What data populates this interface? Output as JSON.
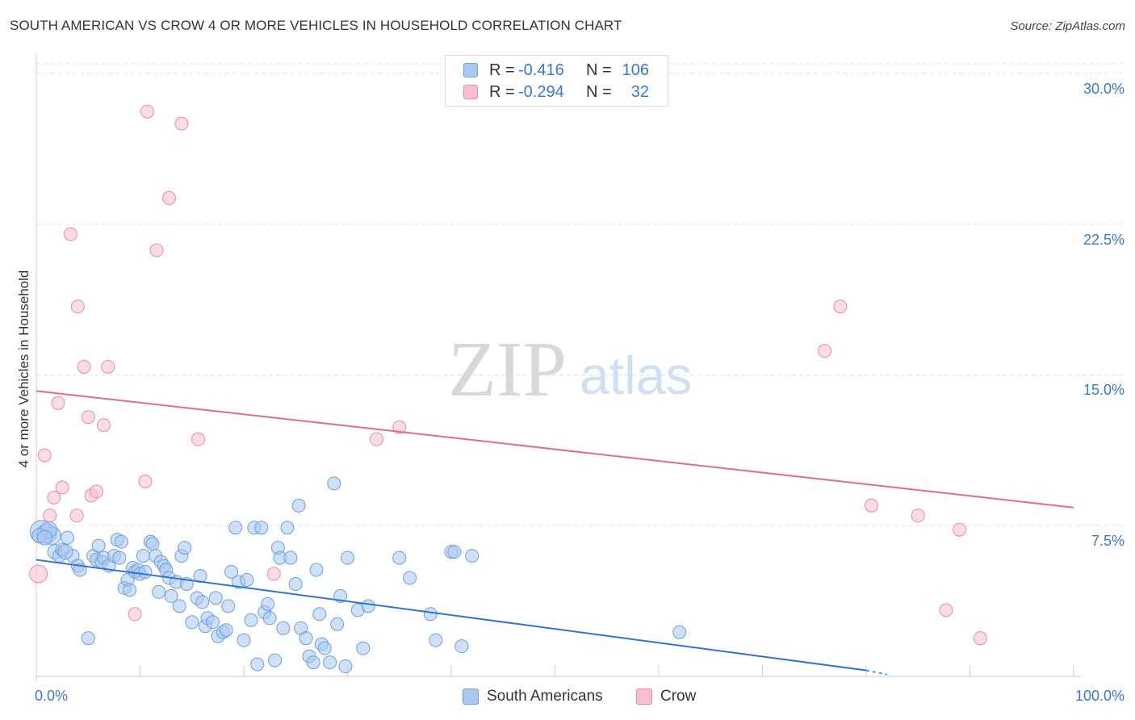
{
  "title": "SOUTH AMERICAN VS CROW 4 OR MORE VEHICLES IN HOUSEHOLD CORRELATION CHART",
  "source": "Source: ZipAtlas.com",
  "watermark": {
    "zip": "ZIP",
    "atlas": "atlas"
  },
  "legend": {
    "rows": [
      {
        "r_label": "R =",
        "r_value": "-0.416",
        "n_label": "N =",
        "n_value": "106",
        "color": "#a9c8f0",
        "border": "#6a9fe0"
      },
      {
        "r_label": "R =",
        "r_value": "-0.294",
        "n_label": "N =",
        "n_value": "32",
        "color": "#f7bfd0",
        "border": "#e88aa8"
      }
    ]
  },
  "chart_data": {
    "type": "scatter",
    "title": "SOUTH AMERICAN VS CROW 4 OR MORE VEHICLES IN HOUSEHOLD CORRELATION CHART",
    "xlabel": "",
    "ylabel": "4 or more Vehicles in Household",
    "xlim": [
      0,
      100
    ],
    "ylim": [
      0,
      31
    ],
    "x_tick_labels": [
      "0.0%",
      "100.0%"
    ],
    "y_ticks": [
      7.5,
      15.0,
      22.5,
      30.0
    ],
    "y_tick_labels": [
      "7.5%",
      "15.0%",
      "22.5%",
      "30.0%"
    ],
    "grid": true,
    "series": [
      {
        "name": "South Americans",
        "color": "#a9c8f0",
        "edge": "#6a9fe0",
        "line_color": "#2f74d0",
        "trend": {
          "x": [
            0,
            80
          ],
          "y": [
            5.8,
            0.3
          ],
          "dash_to": [
            82,
            0.1
          ]
        },
        "points": [
          [
            0.5,
            7.2,
            14
          ],
          [
            1,
            7.1,
            12
          ],
          [
            1.5,
            7.0,
            11
          ],
          [
            1.2,
            7.3,
            10
          ],
          [
            1.8,
            6.2,
            9
          ],
          [
            2.2,
            6.0,
            8
          ],
          [
            2.5,
            6.3,
            8
          ],
          [
            3,
            6.9,
            8
          ],
          [
            3.5,
            6.0,
            8
          ],
          [
            4,
            5.5,
            8
          ],
          [
            4.2,
            5.3,
            8
          ],
          [
            5,
            1.9,
            8
          ],
          [
            5.5,
            6.0,
            8
          ],
          [
            5.8,
            5.8,
            8
          ],
          [
            6,
            6.5,
            8
          ],
          [
            6.3,
            5.7,
            8
          ],
          [
            6.5,
            5.9,
            8
          ],
          [
            7,
            5.5,
            8
          ],
          [
            7.5,
            6.0,
            8
          ],
          [
            7.8,
            6.8,
            8
          ],
          [
            8,
            5.9,
            8
          ],
          [
            8.2,
            6.7,
            8
          ],
          [
            8.5,
            4.4,
            8
          ],
          [
            8.8,
            4.8,
            8
          ],
          [
            9,
            4.3,
            8
          ],
          [
            9.3,
            5.4,
            8
          ],
          [
            9.5,
            5.2,
            8
          ],
          [
            9.8,
            5.3,
            8
          ],
          [
            10,
            5.1,
            8
          ],
          [
            10.3,
            6.0,
            8
          ],
          [
            10.5,
            5.2,
            8
          ],
          [
            11,
            6.7,
            8
          ],
          [
            11.2,
            6.6,
            8
          ],
          [
            11.5,
            6.0,
            8
          ],
          [
            11.8,
            4.2,
            8
          ],
          [
            12,
            5.7,
            8
          ],
          [
            12.3,
            5.5,
            8
          ],
          [
            12.5,
            5.3,
            8
          ],
          [
            12.8,
            4.9,
            8
          ],
          [
            13,
            4.0,
            8
          ],
          [
            13.5,
            4.7,
            8
          ],
          [
            13.8,
            3.5,
            8
          ],
          [
            14,
            6.0,
            8
          ],
          [
            14.3,
            6.4,
            8
          ],
          [
            14.5,
            4.6,
            8
          ],
          [
            15,
            2.7,
            8
          ],
          [
            15.5,
            3.9,
            8
          ],
          [
            15.8,
            5.0,
            8
          ],
          [
            16,
            3.7,
            8
          ],
          [
            16.3,
            2.5,
            8
          ],
          [
            16.5,
            2.9,
            8
          ],
          [
            17,
            2.7,
            8
          ],
          [
            17.3,
            3.9,
            8
          ],
          [
            17.5,
            2.0,
            8
          ],
          [
            18,
            2.2,
            8
          ],
          [
            18.3,
            2.3,
            8
          ],
          [
            18.5,
            3.5,
            8
          ],
          [
            18.8,
            5.2,
            8
          ],
          [
            19.2,
            7.4,
            8
          ],
          [
            19.5,
            4.7,
            8
          ],
          [
            20,
            1.8,
            8
          ],
          [
            20.3,
            4.8,
            8
          ],
          [
            20.7,
            2.8,
            8
          ],
          [
            21,
            7.4,
            8
          ],
          [
            21.3,
            0.6,
            8
          ],
          [
            21.7,
            7.4,
            8
          ],
          [
            22,
            3.2,
            8
          ],
          [
            22.3,
            3.6,
            8
          ],
          [
            22.5,
            2.9,
            8
          ],
          [
            23,
            0.8,
            8
          ],
          [
            23.3,
            6.4,
            8
          ],
          [
            23.5,
            5.9,
            8
          ],
          [
            23.8,
            2.4,
            8
          ],
          [
            24.2,
            7.4,
            8
          ],
          [
            24.5,
            5.9,
            8
          ],
          [
            25,
            4.6,
            8
          ],
          [
            25.3,
            8.5,
            8
          ],
          [
            25.5,
            2.4,
            8
          ],
          [
            26,
            1.9,
            8
          ],
          [
            26.3,
            1.0,
            8
          ],
          [
            26.7,
            0.7,
            8
          ],
          [
            27,
            5.3,
            8
          ],
          [
            27.3,
            3.1,
            8
          ],
          [
            27.5,
            1.6,
            8
          ],
          [
            27.8,
            1.4,
            8
          ],
          [
            28.3,
            0.7,
            8
          ],
          [
            28.7,
            9.6,
            8
          ],
          [
            29,
            2.6,
            8
          ],
          [
            29.3,
            4.0,
            8
          ],
          [
            29.8,
            0.5,
            8
          ],
          [
            30,
            5.9,
            8
          ],
          [
            31,
            3.3,
            8
          ],
          [
            31.5,
            1.4,
            8
          ],
          [
            32,
            3.5,
            8
          ],
          [
            35,
            5.9,
            8
          ],
          [
            36,
            4.9,
            8
          ],
          [
            38,
            3.1,
            8
          ],
          [
            38.5,
            1.8,
            8
          ],
          [
            40,
            6.2,
            8
          ],
          [
            40.3,
            6.2,
            8
          ],
          [
            41,
            1.5,
            8
          ],
          [
            42,
            6.0,
            8
          ],
          [
            62,
            2.2,
            8
          ],
          [
            0.3,
            7.0,
            9
          ],
          [
            0.8,
            6.9,
            9
          ],
          [
            2.8,
            6.2,
            9
          ]
        ]
      },
      {
        "name": "Crow",
        "color": "#f7bfd0",
        "edge": "#e88aa8",
        "line_color": "#e06a96",
        "trend": {
          "x": [
            0,
            100
          ],
          "y": [
            14.2,
            8.4
          ]
        },
        "points": [
          [
            0.2,
            5.1,
            11
          ],
          [
            0.8,
            11.0,
            8
          ],
          [
            1.3,
            8.0,
            8
          ],
          [
            1.7,
            8.9,
            8
          ],
          [
            2.1,
            13.6,
            8
          ],
          [
            2.5,
            9.4,
            8
          ],
          [
            3.3,
            22.0,
            8
          ],
          [
            3.9,
            8.0,
            8
          ],
          [
            4,
            18.4,
            8
          ],
          [
            4.6,
            15.4,
            8
          ],
          [
            5,
            12.9,
            8
          ],
          [
            5.3,
            9.0,
            8
          ],
          [
            5.8,
            9.2,
            8
          ],
          [
            6.5,
            12.5,
            8
          ],
          [
            6.9,
            15.4,
            8
          ],
          [
            9.5,
            3.1,
            8
          ],
          [
            10.5,
            9.7,
            8
          ],
          [
            10.7,
            28.1,
            8
          ],
          [
            11.6,
            21.2,
            8
          ],
          [
            12.8,
            23.8,
            8
          ],
          [
            14,
            27.5,
            8
          ],
          [
            15.6,
            11.8,
            8
          ],
          [
            22.9,
            5.1,
            8
          ],
          [
            32.8,
            11.8,
            8
          ],
          [
            35,
            12.4,
            8
          ],
          [
            76,
            16.2,
            8
          ],
          [
            77.5,
            18.4,
            8
          ],
          [
            80.5,
            8.5,
            8
          ],
          [
            85,
            8.0,
            8
          ],
          [
            87.7,
            3.3,
            8
          ],
          [
            89,
            7.3,
            8
          ],
          [
            91,
            1.9,
            8
          ]
        ]
      }
    ]
  },
  "bottom_legend": [
    {
      "label": "South Americans",
      "color": "#a9c8f0",
      "border": "#6a9fe0"
    },
    {
      "label": "Crow",
      "color": "#f7bfd0",
      "border": "#e88aa8"
    }
  ]
}
